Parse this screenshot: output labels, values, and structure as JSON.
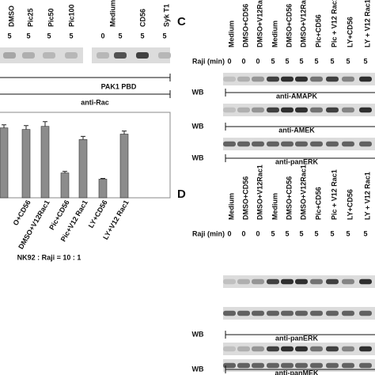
{
  "panel_b": {
    "lanes_1": [
      "DMSO",
      "Pic25",
      "Pic50",
      "Pic100"
    ],
    "lanes_2": [
      "Medium",
      "CD56",
      "Syk T1"
    ],
    "times": [
      5,
      5,
      5,
      5,
      0,
      5,
      5,
      5
    ],
    "probe": "PAK1 PBD",
    "antibody": "anti-Rac"
  },
  "chart_data": {
    "type": "bar",
    "categories": [
      null,
      "O+CD56",
      "DMSO+V12Rac1",
      "Pic+CD56",
      "Pic+V12 Rac1",
      "LY+CD56",
      "LY+V12 Rac1"
    ],
    "values": [
      90,
      88,
      92,
      32,
      75,
      24,
      82
    ],
    "errors": [
      4,
      5,
      6,
      2,
      4,
      1,
      4
    ],
    "color": "#8c8c8c",
    "ylim": [
      0,
      110
    ],
    "annotation": "NK92 : Raji = 10 : 1"
  },
  "panel_c": {
    "label": "C",
    "lanes": [
      "Medium",
      "DMSO+CD56",
      "DMSO+V12Rac1",
      "Medium",
      "DMSO+CD56",
      "DMSO+V12Rac1",
      "Pic+CD56",
      "Pic + V12 Rac1",
      "LY+CD56",
      "LY + V12 Rac1"
    ],
    "time_label": "Raji  (min)",
    "times": [
      0,
      0,
      0,
      5,
      5,
      5,
      5,
      5,
      5,
      5
    ],
    "blots": [
      {
        "wb": "WB",
        "antibody": "anti-AMAPK"
      },
      {
        "wb": "WB",
        "antibody": "anti-AMEK"
      },
      {
        "wb": "WB",
        "antibody": "anti-panERK"
      }
    ]
  },
  "panel_d": {
    "label": "D",
    "lanes": [
      "Medium",
      "DMSO+CD56",
      "DMSO+V12Rac1",
      "Medium",
      "DMSO+CD56",
      "DMSO+V12Rac1",
      "Pic+CD56",
      "Pic + V12 Rac1",
      "LY+CD56",
      "LY + V12 Rac1"
    ],
    "time_label": "Raji  (min)",
    "times": [
      0,
      0,
      0,
      5,
      5,
      5,
      5,
      5,
      5,
      5
    ],
    "blots": [
      {
        "wb": "WB",
        "antibody": "anti-panERK"
      },
      {
        "wb": "WB",
        "antibody": "anti-panMEK"
      }
    ]
  }
}
